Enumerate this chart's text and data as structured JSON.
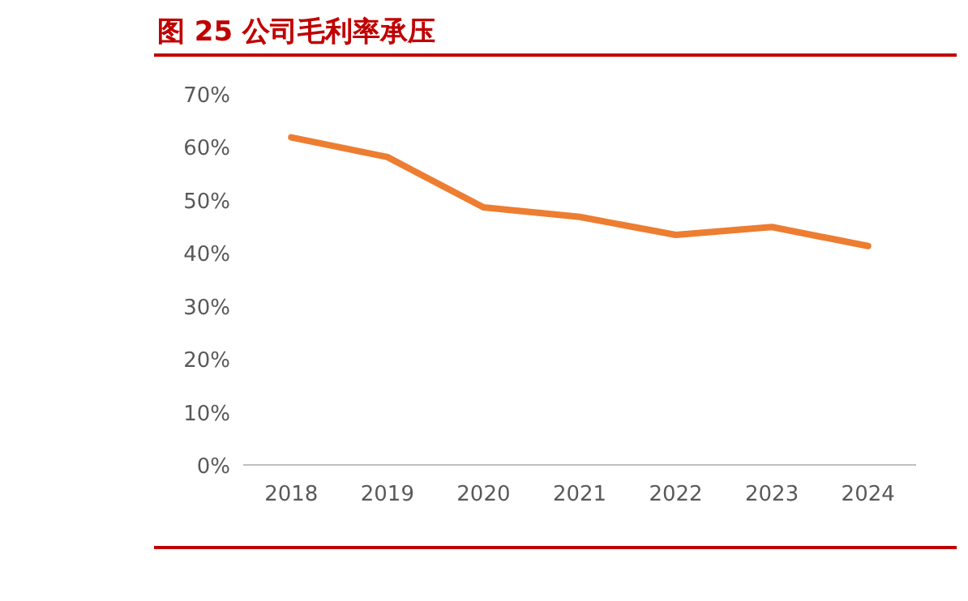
{
  "chart_data": {
    "type": "line",
    "title": "图 25  公司毛利率承压",
    "categories": [
      "2018",
      "2019",
      "2020",
      "2021",
      "2022",
      "2023",
      "2024"
    ],
    "series": [
      {
        "color": "#ed7d31",
        "values": [
          61.8,
          58.1,
          48.6,
          46.8,
          43.4,
          44.9,
          41.3
        ]
      }
    ],
    "ylim": [
      0,
      70
    ],
    "yticks": [
      {
        "value": 0,
        "label": "0%"
      },
      {
        "value": 10,
        "label": "10%"
      },
      {
        "value": 20,
        "label": "20%"
      },
      {
        "value": 30,
        "label": "30%"
      },
      {
        "value": 40,
        "label": "40%"
      },
      {
        "value": 50,
        "label": "50%"
      },
      {
        "value": 60,
        "label": "60%"
      },
      {
        "value": 70,
        "label": "70%"
      }
    ],
    "grid": false,
    "marker": "none",
    "line_style": "solid"
  }
}
